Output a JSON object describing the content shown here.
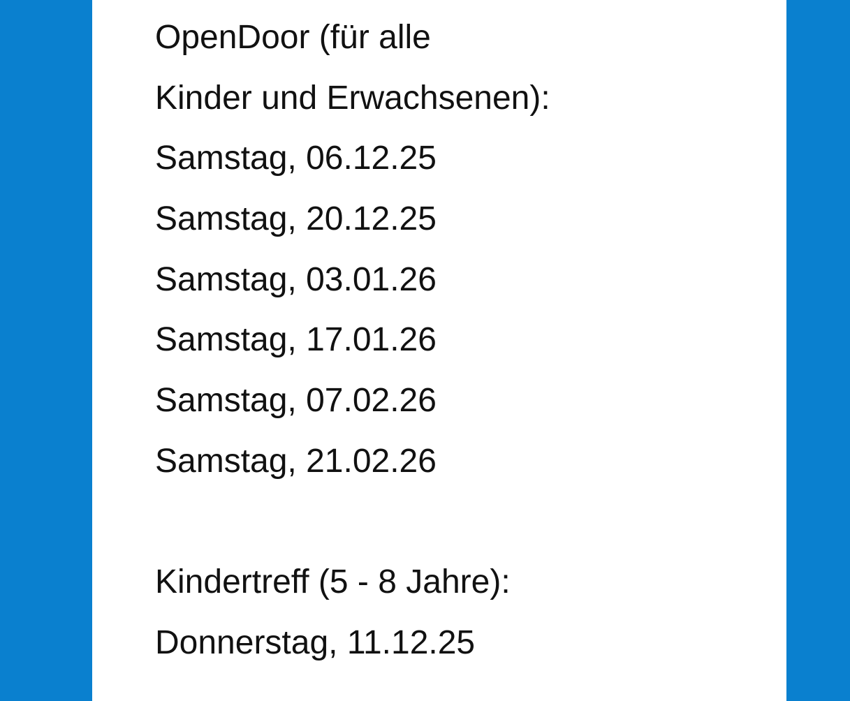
{
  "colors": {
    "background": "#0a80cf",
    "panel": "#ffffff",
    "text": "#111111"
  },
  "section1": {
    "heading_line1": "OpenDoor (für alle",
    "heading_line2": "Kinder und Erwachsenen):",
    "dates": [
      "Samstag, 06.12.25",
      "Samstag, 20.12.25",
      "Samstag, 03.01.26",
      "Samstag, 17.01.26",
      "Samstag, 07.02.26",
      "Samstag, 21.02.26"
    ]
  },
  "section2": {
    "heading": "Kindertreff (5 - 8 Jahre):",
    "dates": [
      "Donnerstag, 11.12.25"
    ]
  }
}
